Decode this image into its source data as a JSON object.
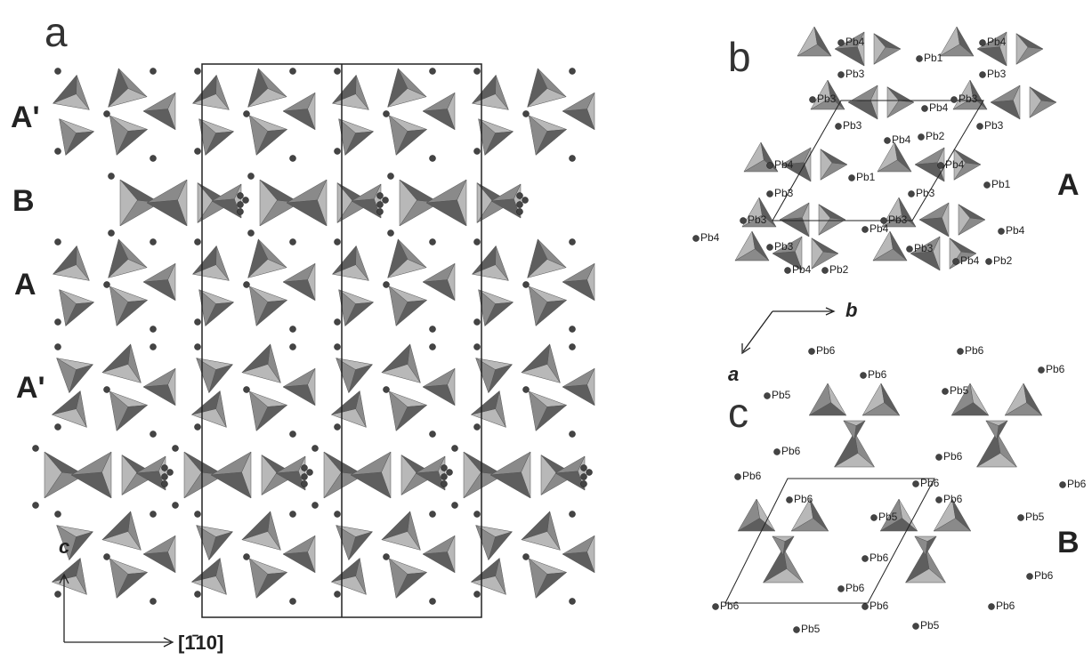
{
  "panel_a": {
    "label": "a",
    "layers": [
      "A'",
      "B",
      "A",
      "A'"
    ],
    "axis_c": "c",
    "axis_h": "[1̄10]"
  },
  "panel_b": {
    "label": "b",
    "layer": "A",
    "axis_b": "b",
    "axis_a": "a",
    "atoms": [
      "Pb4",
      "Pb4",
      "Pb1",
      "Pb3",
      "Pb3",
      "Pb3",
      "Pb3",
      "Pb4",
      "Pb3",
      "Pb4",
      "Pb2",
      "Pb3",
      "Pb4",
      "Pb1",
      "Pb4",
      "Pb1",
      "Pb3",
      "Pb3",
      "Pb3",
      "Pb3",
      "Pb4",
      "Pb4",
      "Pb4",
      "Pb3",
      "Pb3",
      "Pb4",
      "Pb2",
      "Pb4",
      "Pb2"
    ]
  },
  "panel_c": {
    "label": "c",
    "layer": "B",
    "atoms": [
      "Pb6",
      "Pb6",
      "Pb6",
      "Pb6",
      "Pb5",
      "Pb5",
      "Pb6",
      "Pb6",
      "Pb6",
      "Pb6",
      "Pb6",
      "Pb6",
      "Pb6",
      "Pb5",
      "Pb5",
      "Pb6",
      "Pb6",
      "Pb6",
      "Pb6",
      "Pb6",
      "Pb6",
      "Pb5",
      "Pb5"
    ]
  }
}
